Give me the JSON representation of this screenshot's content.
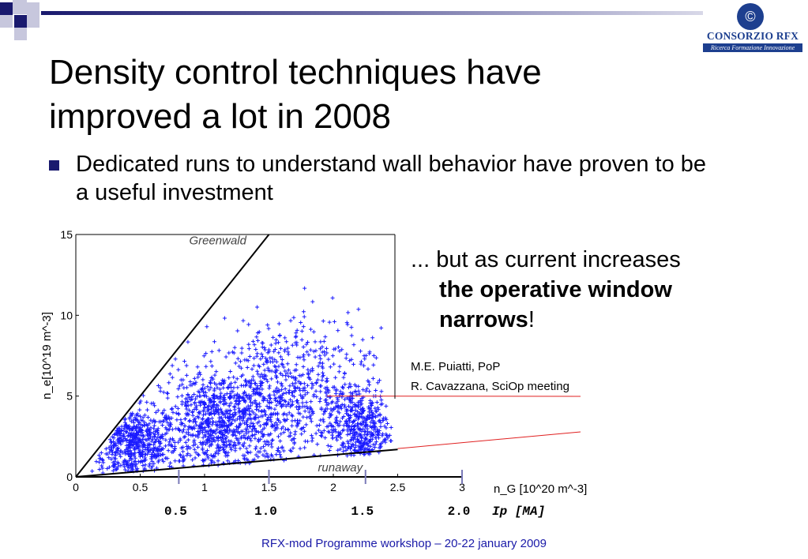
{
  "slide": {
    "title_line1": "Density control techniques have",
    "title_line2": "improved a lot in 2008",
    "bullet": "Dedicated runs to understand wall behavior have proven to be a useful investment",
    "side_text": {
      "line1": "... but as current increases",
      "bold": "the operative window narrows",
      "bold_l1": "the operative window",
      "bold_l2": "narrows",
      "suffix": "!"
    },
    "refs": [
      "M.E. Puiatti, PoP",
      "R. Cavazzana, SciOp meeting"
    ],
    "footer": "RFX-mod Programme workshop – 20-22 january 2009",
    "logo": {
      "name": "CONSORZIO RFX",
      "tagline": "Ricerca Formazione Innovazione",
      "icon": "rfx-logo-icon"
    }
  },
  "colors": {
    "title_bar_blue": "#1a1a6e",
    "points": "#1a1aff",
    "accent_red": "#e02020",
    "footer_blue": "#1a1aa8"
  },
  "chart_data": {
    "type": "scatter",
    "xlabel": "n_G [10^20 m^-3]",
    "ylabel": "n_e[10^19 m^-3]",
    "xlim": [
      0,
      3
    ],
    "ylim": [
      0,
      15
    ],
    "xticks": [
      "0",
      "0.5",
      "1",
      "1.5",
      "2",
      "2.5",
      "3"
    ],
    "yticks": [
      "0",
      "5",
      "10",
      "15"
    ],
    "secondary_axis": {
      "label": "Ip [MA]",
      "ticks": [
        {
          "label": "0.5",
          "n_G": 0.8
        },
        {
          "label": "1.0",
          "n_G": 1.5
        },
        {
          "label": "1.5",
          "n_G": 2.25
        },
        {
          "label": "2.0",
          "n_G": 3.0
        }
      ]
    },
    "lines": [
      {
        "name": "Greenwald",
        "x": [
          0,
          1.5
        ],
        "y": [
          0,
          15
        ]
      },
      {
        "name": "runaway",
        "x": [
          0,
          2.5
        ],
        "y": [
          0,
          1.7
        ]
      }
    ],
    "clusters": [
      {
        "x_center": 0.45,
        "y_center": 2.0,
        "x_sd": 0.17,
        "y_sd": 1.1,
        "n": 650
      },
      {
        "x_center": 1.1,
        "y_center": 3.3,
        "x_sd": 0.22,
        "y_sd": 1.6,
        "n": 800
      },
      {
        "x_center": 1.55,
        "y_center": 4.8,
        "x_sd": 0.28,
        "y_sd": 2.3,
        "n": 600
      },
      {
        "x_center": 2.2,
        "y_center": 3.0,
        "x_sd": 0.12,
        "y_sd": 1.2,
        "n": 450
      },
      {
        "x_center": 1.9,
        "y_center": 6.5,
        "x_sd": 0.28,
        "y_sd": 2.1,
        "n": 180
      }
    ]
  }
}
